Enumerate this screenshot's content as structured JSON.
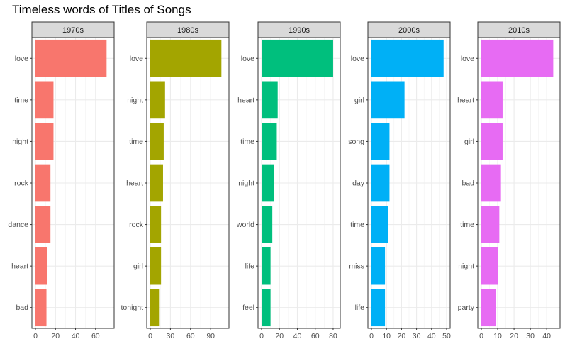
{
  "chart_data": {
    "type": "bar",
    "orientation": "horizontal",
    "title": "Timeless words of Titles of Songs",
    "xlabel": "",
    "ylabel": "",
    "grid": true,
    "legend": "none",
    "panels": [
      {
        "name": "1970s",
        "color": "#F8766D",
        "xlim": [
          0,
          75
        ],
        "xticks": [
          0,
          20,
          40,
          60
        ],
        "categories": [
          "love",
          "time",
          "night",
          "rock",
          "dance",
          "heart",
          "bad"
        ],
        "values": [
          71,
          18,
          18,
          15,
          15,
          12,
          11
        ]
      },
      {
        "name": "1980s",
        "color": "#A3A500",
        "xlim": [
          0,
          112
        ],
        "xticks": [
          0,
          30,
          60,
          90
        ],
        "categories": [
          "love",
          "night",
          "time",
          "heart",
          "rock",
          "girl",
          "tonight"
        ],
        "values": [
          106,
          22,
          20,
          19,
          16,
          16,
          13
        ]
      },
      {
        "name": "1990s",
        "color": "#00BF7D",
        "xlim": [
          0,
          84
        ],
        "xticks": [
          0,
          20,
          40,
          60,
          80
        ],
        "categories": [
          "love",
          "heart",
          "time",
          "night",
          "world",
          "life",
          "feel"
        ],
        "values": [
          80,
          18,
          17,
          14,
          12,
          10,
          10
        ]
      },
      {
        "name": "2000s",
        "color": "#00B0F6",
        "xlim": [
          0,
          50
        ],
        "xticks": [
          0,
          10,
          20,
          30,
          40,
          50
        ],
        "categories": [
          "love",
          "girl",
          "song",
          "day",
          "time",
          "miss",
          "life"
        ],
        "values": [
          48,
          22,
          12,
          12,
          11,
          9,
          9
        ]
      },
      {
        "name": "2010s",
        "color": "#E76BF3",
        "xlim": [
          0,
          46
        ],
        "xticks": [
          0,
          10,
          20,
          30,
          40
        ],
        "categories": [
          "love",
          "heart",
          "girl",
          "bad",
          "time",
          "night",
          "party"
        ],
        "values": [
          44,
          13,
          13,
          12,
          11,
          10,
          9
        ]
      }
    ]
  }
}
